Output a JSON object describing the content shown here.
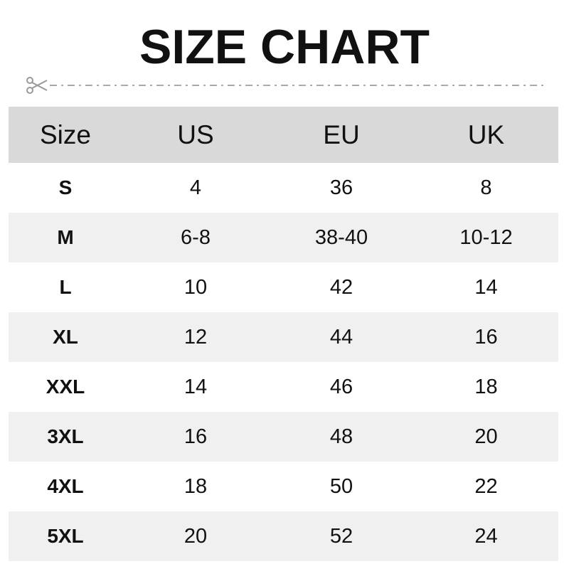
{
  "title": "SIZE CHART",
  "colors": {
    "header_bg": "#d9d9d9",
    "alt_row_bg": "#f0f0f0",
    "cut_line": "#999999"
  },
  "icons": {
    "cut_line": "scissors-icon"
  },
  "chart_data": {
    "type": "table",
    "title": "SIZE CHART",
    "columns": [
      "Size",
      "US",
      "EU",
      "UK"
    ],
    "rows": [
      [
        "S",
        "4",
        "36",
        "8"
      ],
      [
        "M",
        "6-8",
        "38-40",
        "10-12"
      ],
      [
        "L",
        "10",
        "42",
        "14"
      ],
      [
        "XL",
        "12",
        "44",
        "16"
      ],
      [
        "XXL",
        "14",
        "46",
        "18"
      ],
      [
        "3XL",
        "16",
        "48",
        "20"
      ],
      [
        "4XL",
        "18",
        "50",
        "22"
      ],
      [
        "5XL",
        "20",
        "52",
        "24"
      ]
    ]
  }
}
